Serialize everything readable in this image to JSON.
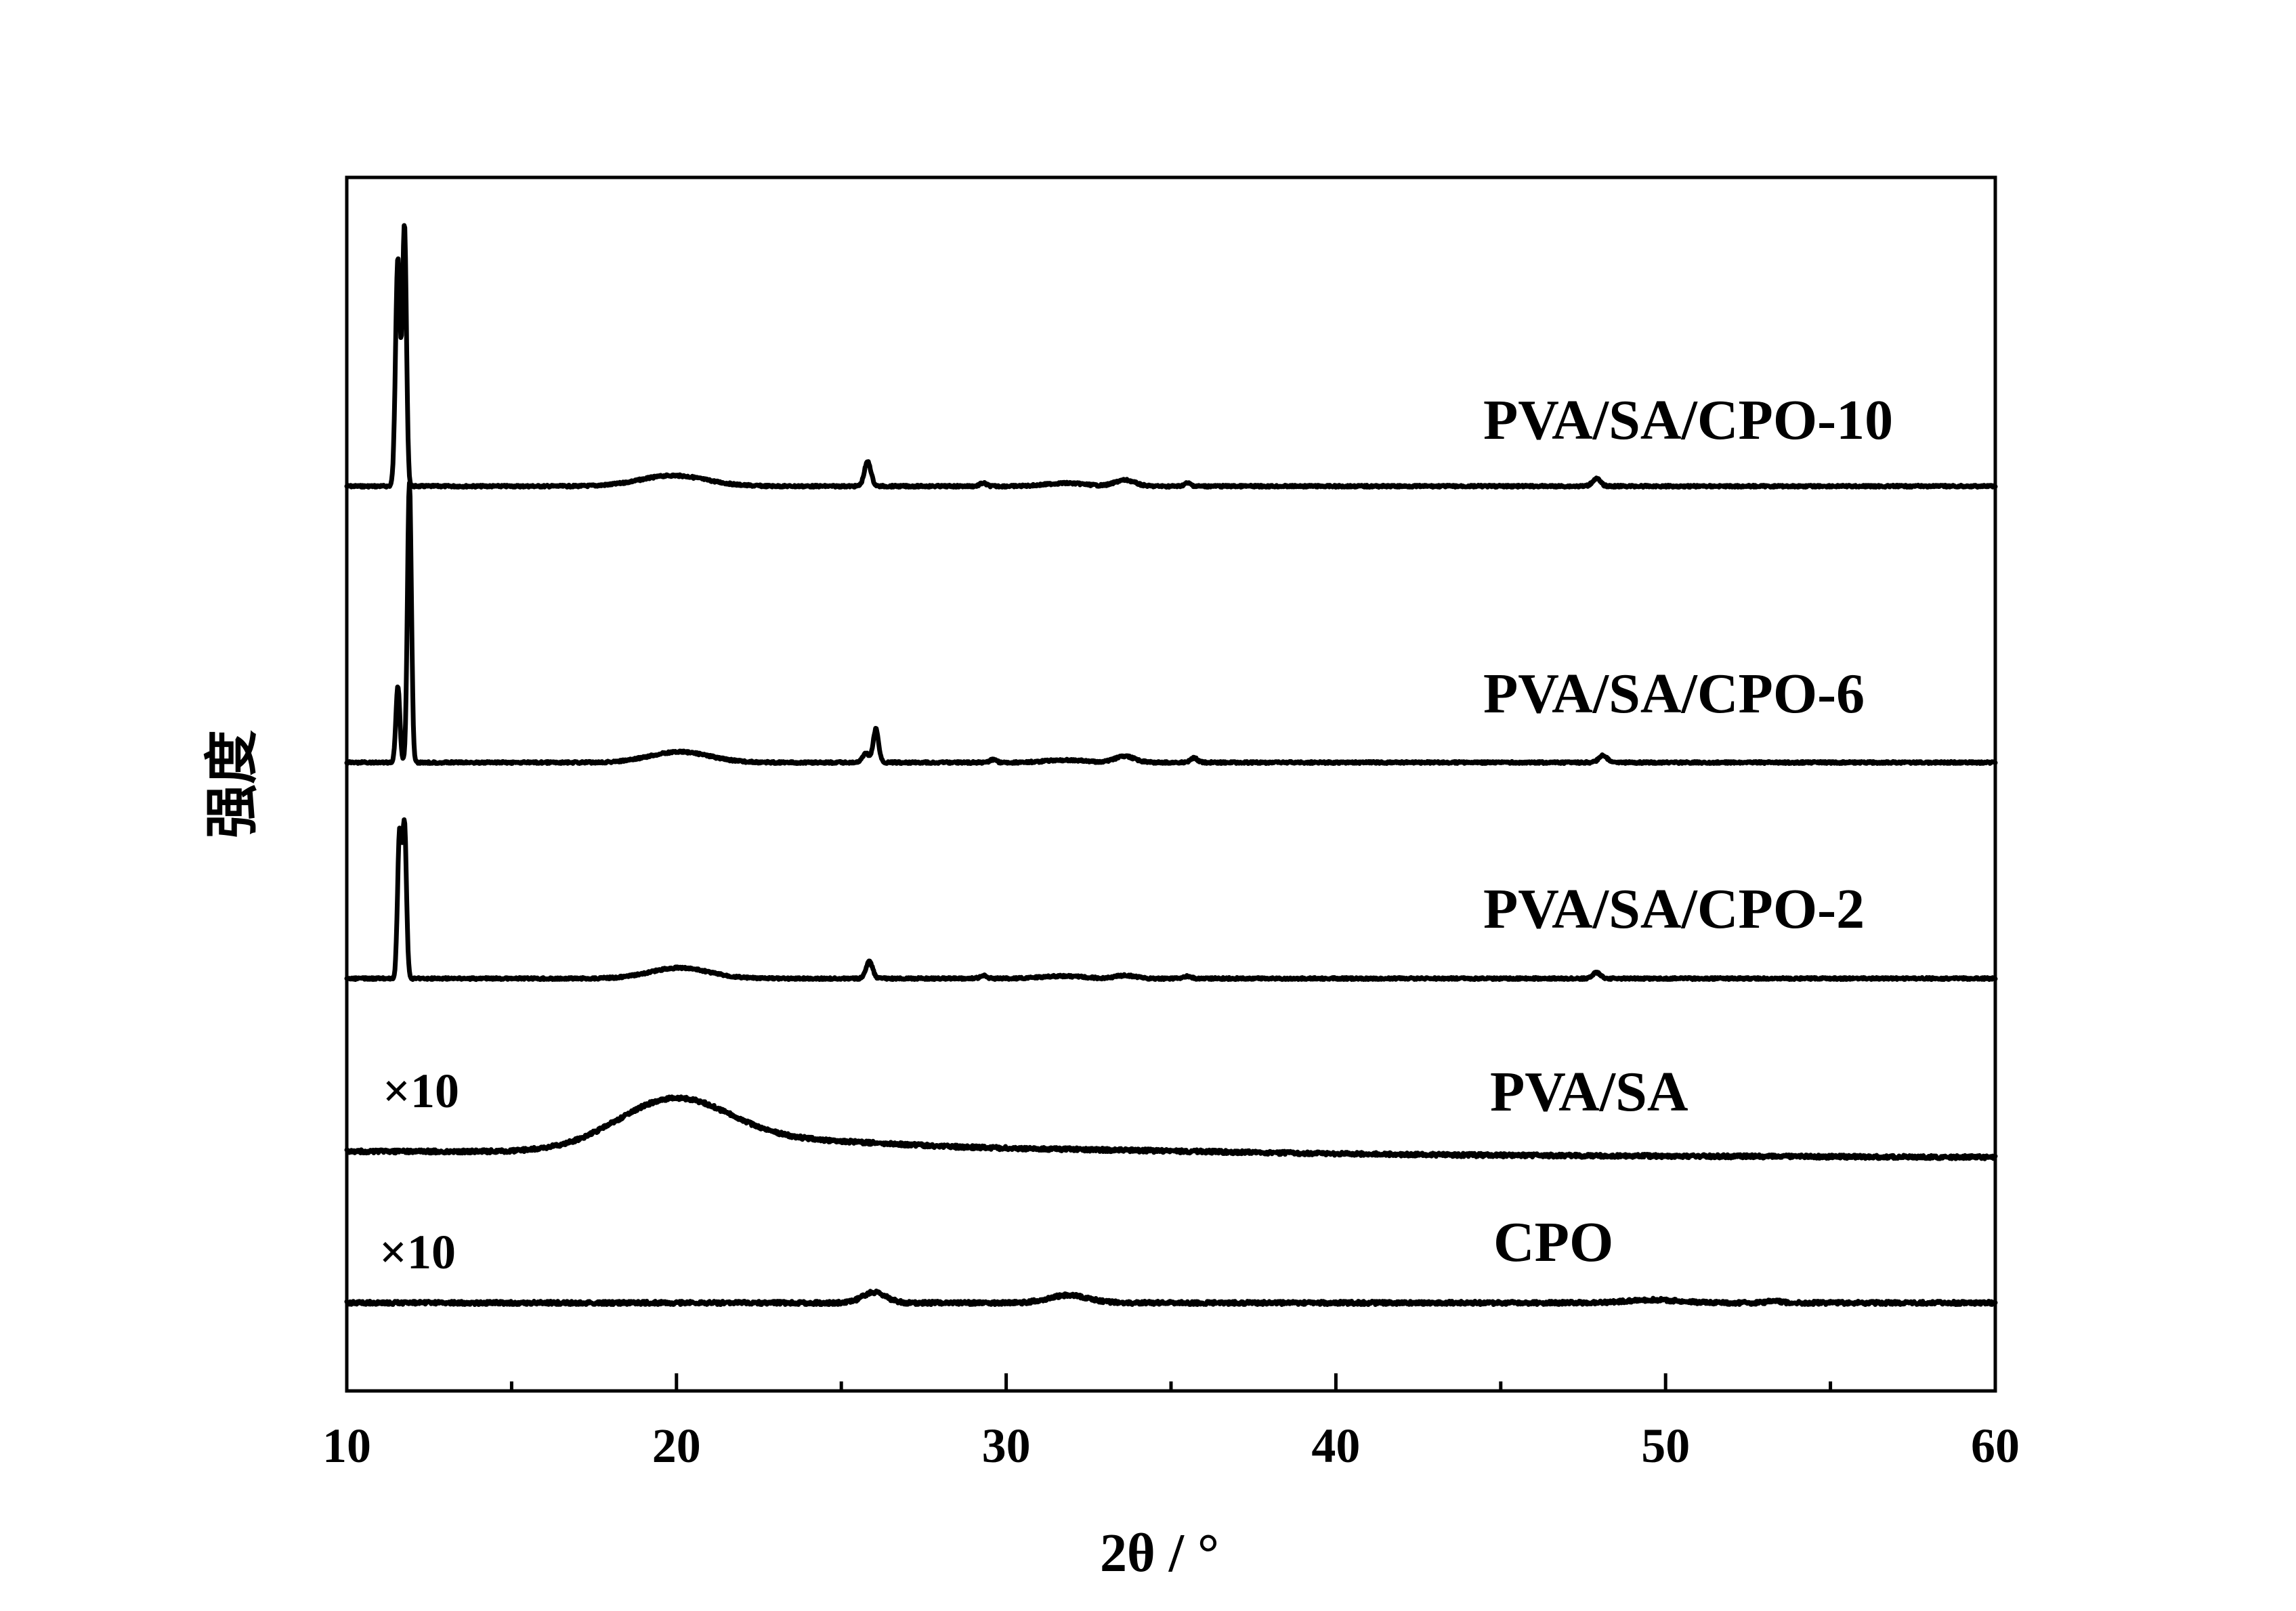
{
  "chart_data": {
    "type": "line",
    "xlabel": "2θ / °",
    "ylabel": "强度",
    "xlim": [
      10,
      60
    ],
    "xticks": [
      10,
      20,
      30,
      40,
      50,
      60
    ],
    "grid": false,
    "series": [
      {
        "name": "PVA/SA/CPO-10",
        "baseline": 4,
        "peaks": [
          [
            11.55,
            0.75,
            0.07
          ],
          [
            11.75,
            0.85,
            0.06
          ],
          [
            19.9,
            0.035,
            1.0
          ],
          [
            25.8,
            0.08,
            0.1
          ],
          [
            29.3,
            0.01,
            0.1
          ],
          [
            31.8,
            0.01,
            0.6
          ],
          [
            33.6,
            0.02,
            0.3
          ],
          [
            35.5,
            0.01,
            0.1
          ],
          [
            47.9,
            0.025,
            0.12
          ]
        ]
      },
      {
        "name": "PVA/SA/CPO-6",
        "baseline": 3,
        "peaks": [
          [
            11.55,
            0.25,
            0.06
          ],
          [
            11.9,
            0.92,
            0.06
          ],
          [
            20.1,
            0.035,
            0.9
          ],
          [
            25.75,
            0.03,
            0.1
          ],
          [
            26.05,
            0.11,
            0.08
          ],
          [
            29.6,
            0.01,
            0.1
          ],
          [
            31.8,
            0.008,
            0.6
          ],
          [
            33.6,
            0.02,
            0.3
          ],
          [
            35.7,
            0.015,
            0.1
          ],
          [
            48.1,
            0.025,
            0.12
          ]
        ]
      },
      {
        "name": "PVA/SA/CPO-2",
        "baseline": 2,
        "peaks": [
          [
            11.6,
            0.47,
            0.06
          ],
          [
            11.75,
            0.5,
            0.06
          ],
          [
            20.1,
            0.035,
            0.9
          ],
          [
            25.85,
            0.055,
            0.1
          ],
          [
            29.3,
            0.01,
            0.1
          ],
          [
            31.7,
            0.008,
            0.6
          ],
          [
            33.6,
            0.01,
            0.3
          ],
          [
            35.5,
            0.008,
            0.1
          ],
          [
            47.9,
            0.02,
            0.12
          ]
        ]
      },
      {
        "name": "PVA/SA",
        "scale_label": "×10",
        "baseline": 1,
        "peaks": [
          [
            19.9,
            0.16,
            1.7
          ],
          [
            23.5,
            0.03,
            3.0
          ],
          [
            30.0,
            0.015,
            6.0
          ]
        ]
      },
      {
        "name": "CPO",
        "scale_label": "×10",
        "baseline": 0,
        "peaks": [
          [
            26.0,
            0.035,
            0.35
          ],
          [
            31.9,
            0.025,
            0.6
          ],
          [
            49.6,
            0.01,
            0.8
          ],
          [
            53.3,
            0.006,
            0.2
          ]
        ]
      }
    ]
  }
}
